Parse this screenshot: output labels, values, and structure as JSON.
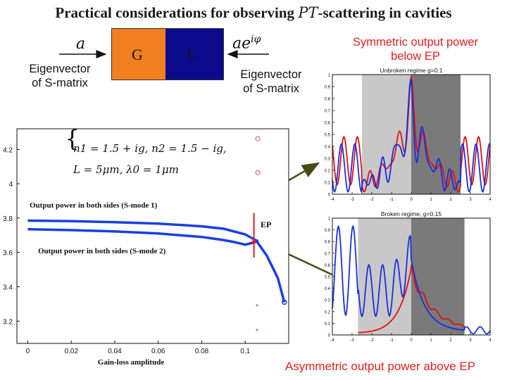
{
  "slide_title": {
    "prefix": "Practical considerations for observing ",
    "symbol": "PT",
    "suffix": "-scattering in cavities"
  },
  "left_eigen": {
    "amp": "a",
    "line1": "Eigenvector",
    "line2": "of S-matrix"
  },
  "right_eigen": {
    "amp": "ae",
    "phase": "iφ",
    "line1": "Eigenvector",
    "line2": "of S-matrix"
  },
  "cavity": {
    "gain_label": "G",
    "loss_label": "L",
    "gain_color": "#f08020",
    "loss_color": "#0a0a8a"
  },
  "note_top": {
    "line1": "Symmetric output power",
    "line2": "below EP"
  },
  "note_bottom": "Asymmetric output power above EP",
  "main_plot": {
    "xlabel": "Gain-loss amplitude",
    "x_ticks": [
      "0",
      "0.02",
      "0.04",
      "0.06",
      "0.08",
      "0.1"
    ],
    "y_ticks": [
      "3.2",
      "3.4",
      "3.6",
      "3.8",
      "4",
      "4.2"
    ],
    "eq_line1": "n1 = 1.5 + ig, n2 = 1.5 − ig,",
    "eq_line2": "L = 5μm, λ0 = 1μm",
    "label_mode1": "Output power in both sides (S-mode 1)",
    "label_mode2": "Output power in both sides (S-mode 2)",
    "ep_label": "EP",
    "curve_color": "#1a3ee0",
    "ep_color": "#e02020"
  },
  "chart_data": [
    {
      "type": "line",
      "title": "",
      "xlabel": "Gain-loss amplitude",
      "ylabel": "",
      "xlim": [
        -0.005,
        0.12
      ],
      "ylim": [
        3.07,
        4.32
      ],
      "series": [
        {
          "name": "Output power in both sides (S-mode 1)",
          "x": [
            0,
            0.02,
            0.04,
            0.06,
            0.08,
            0.09,
            0.1,
            0.105,
            0.11,
            0.115,
            0.118
          ],
          "y": [
            3.785,
            3.782,
            3.776,
            3.768,
            3.752,
            3.738,
            3.705,
            3.67,
            3.58,
            3.45,
            3.31
          ]
        },
        {
          "name": "Output power in both sides (S-mode 2)",
          "x": [
            0,
            0.02,
            0.04,
            0.06,
            0.08,
            0.09,
            0.095,
            0.1,
            0.104,
            0.106
          ],
          "y": [
            3.735,
            3.73,
            3.722,
            3.71,
            3.69,
            3.672,
            3.66,
            3.645,
            3.658,
            3.67
          ]
        }
      ]
    },
    {
      "type": "line",
      "title": "Unbroken regime g=0.1",
      "x_ticks": [
        "-4",
        "-3",
        "-2",
        "-1",
        "0",
        "1",
        "2",
        "3",
        "4"
      ],
      "y_ticks": [
        "0",
        "0.1",
        "0.2",
        "0.3",
        "0.4",
        "0.5",
        "0.6",
        "0.7",
        "0.8",
        "0.9",
        "1"
      ],
      "xlim": [
        -4,
        4
      ],
      "ylim": [
        0,
        1
      ]
    },
    {
      "type": "line",
      "title": "Broken regime, g=0.15",
      "x_ticks": [
        "-4",
        "-3",
        "-2",
        "-1",
        "0",
        "1",
        "2",
        "3",
        "4"
      ],
      "y_ticks": [
        "0",
        "0.1",
        "0.2",
        "0.3",
        "0.4",
        "0.5",
        "0.6",
        "0.7",
        "0.8",
        "0.9",
        "1"
      ],
      "xlim": [
        -4,
        4
      ],
      "ylim": [
        0,
        1
      ]
    }
  ]
}
